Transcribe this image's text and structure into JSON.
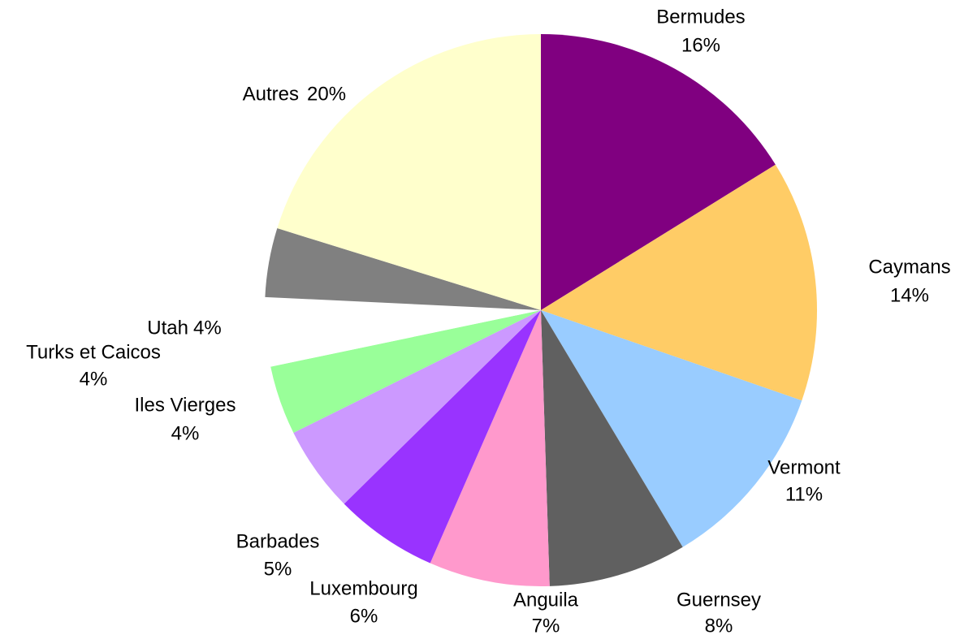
{
  "chart_data": {
    "type": "pie",
    "categories": [
      "Bermudes",
      "Caymans",
      "Vermont",
      "Guernsey",
      "Anguila",
      "Luxembourg",
      "Barbades",
      "Iles Vierges",
      "Turks et Caicos",
      "Utah",
      "Autres"
    ],
    "values": [
      16,
      14,
      11,
      8,
      7,
      6,
      5,
      4,
      4,
      4,
      20
    ],
    "value_labels": [
      "16%",
      "14%",
      "11%",
      "8%",
      "7%",
      "6%",
      "5%",
      "4%",
      "4%",
      "4%",
      "20%"
    ],
    "colors": [
      "#800080",
      "#ffcc66",
      "#99ccff",
      "#606060",
      "#ff99cc",
      "#9933ff",
      "#cc99ff",
      "#99ff99",
      "#ffffff",
      "#808080",
      "#ffffcc"
    ]
  }
}
